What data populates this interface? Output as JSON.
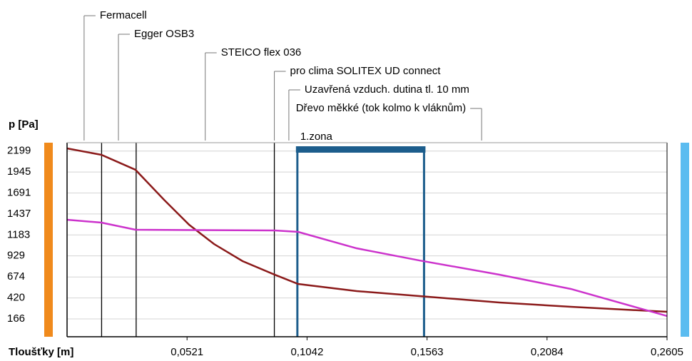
{
  "chart_data": {
    "type": "line",
    "y_label": "p [Pa]",
    "x_label": "Tloušťky [m]",
    "xlim": [
      0,
      0.2605
    ],
    "ylim": [
      -50,
      2300
    ],
    "xticks": [
      {
        "value": 0.0521,
        "label": "0,0521"
      },
      {
        "value": 0.1042,
        "label": "0,1042"
      },
      {
        "value": 0.1563,
        "label": "0,1563"
      },
      {
        "value": 0.2084,
        "label": "0,2084"
      },
      {
        "value": 0.2605,
        "label": "0,2605"
      }
    ],
    "yticks": [
      2199,
      1945,
      1691,
      1437,
      1183,
      929,
      674,
      420,
      166
    ],
    "grid": true,
    "boundaries": [
      0.015,
      0.03,
      0.09
    ],
    "zone": {
      "label": "1.zona",
      "from": 0.1,
      "to": 0.155,
      "color": "#1c5d8c"
    },
    "annotations": [
      {
        "text": "Fermacell",
        "x": 0.0074
      },
      {
        "text": "Egger OSB3",
        "x": 0.0223
      },
      {
        "text": "STEICO flex 036",
        "x": 0.06
      },
      {
        "text": "pro clima SOLITEX UD connect",
        "x": 0.09
      },
      {
        "text": "Uzavřená vzduch. dutina tl. 10 mm",
        "x": 0.0963
      },
      {
        "text": "Dřevo měkké (tok kolmo k vláknům)",
        "x": 0.18
      }
    ],
    "series": [
      {
        "color": "#8b1a1a",
        "x": [
          0,
          0.0149,
          0.0297,
          0.0421,
          0.053,
          0.0638,
          0.0762,
          0.0901,
          0.1003,
          0.1257,
          0.153,
          0.1877,
          0.2187,
          0.2605
        ],
        "values": [
          2231,
          2153,
          1972,
          1609,
          1306,
          1073,
          866,
          702,
          589,
          503,
          442,
          365,
          313,
          252
        ]
      },
      {
        "color": "#cc33cc",
        "x": [
          0,
          0.0149,
          0.0297,
          0.0901,
          0.1003,
          0.1257,
          0.153,
          0.1877,
          0.2187,
          0.2605
        ],
        "values": [
          1367,
          1332,
          1246,
          1237,
          1220,
          1021,
          874,
          702,
          529,
          201
        ]
      }
    ]
  }
}
